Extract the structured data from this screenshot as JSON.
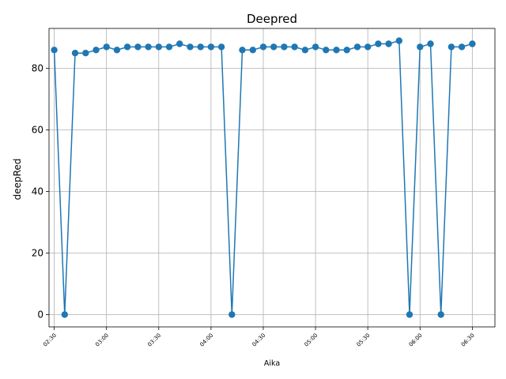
{
  "chart_data": {
    "type": "line",
    "title": "Deepred",
    "xlabel": "Aika",
    "ylabel": "deepRed",
    "grid": true,
    "legend": "none",
    "color": "#1f77b4",
    "x_unit": "time (HH:MM)",
    "x_ticks": [
      "02:30",
      "03:00",
      "03:30",
      "04:00",
      "04:30",
      "05:00",
      "05:30",
      "06:00",
      "06:30"
    ],
    "y_ticks": [
      "0",
      "20",
      "40",
      "60",
      "80"
    ],
    "xlim": [
      "02:27",
      "06:43"
    ],
    "ylim": [
      -4,
      93
    ],
    "series": [
      {
        "x": [
          "02:30",
          "02:36",
          "02:42",
          "02:48",
          "02:54",
          "03:00",
          "03:06",
          "03:12",
          "03:18",
          "03:24",
          "03:30",
          "03:36",
          "03:42",
          "03:48",
          "03:54",
          "04:00",
          "04:06",
          "04:12",
          "04:18",
          "04:24",
          "04:30",
          "04:36",
          "04:42",
          "04:48",
          "04:54",
          "05:00",
          "05:06",
          "05:12",
          "05:18",
          "05:24",
          "05:30",
          "05:36",
          "05:42",
          "05:48",
          "05:54",
          "06:00",
          "06:06",
          "06:12",
          "06:18",
          "06:24",
          "06:30",
          "06:36"
        ],
        "values": [
          86,
          0,
          85,
          85,
          86,
          87,
          86,
          87,
          87,
          87,
          87,
          87,
          88,
          87,
          87,
          87,
          87,
          0,
          86,
          86,
          87,
          87,
          87,
          87,
          86,
          87,
          86,
          86,
          86,
          87,
          87,
          88,
          88,
          89,
          0,
          87,
          88,
          0,
          87,
          87,
          88,
          null
        ]
      }
    ]
  }
}
